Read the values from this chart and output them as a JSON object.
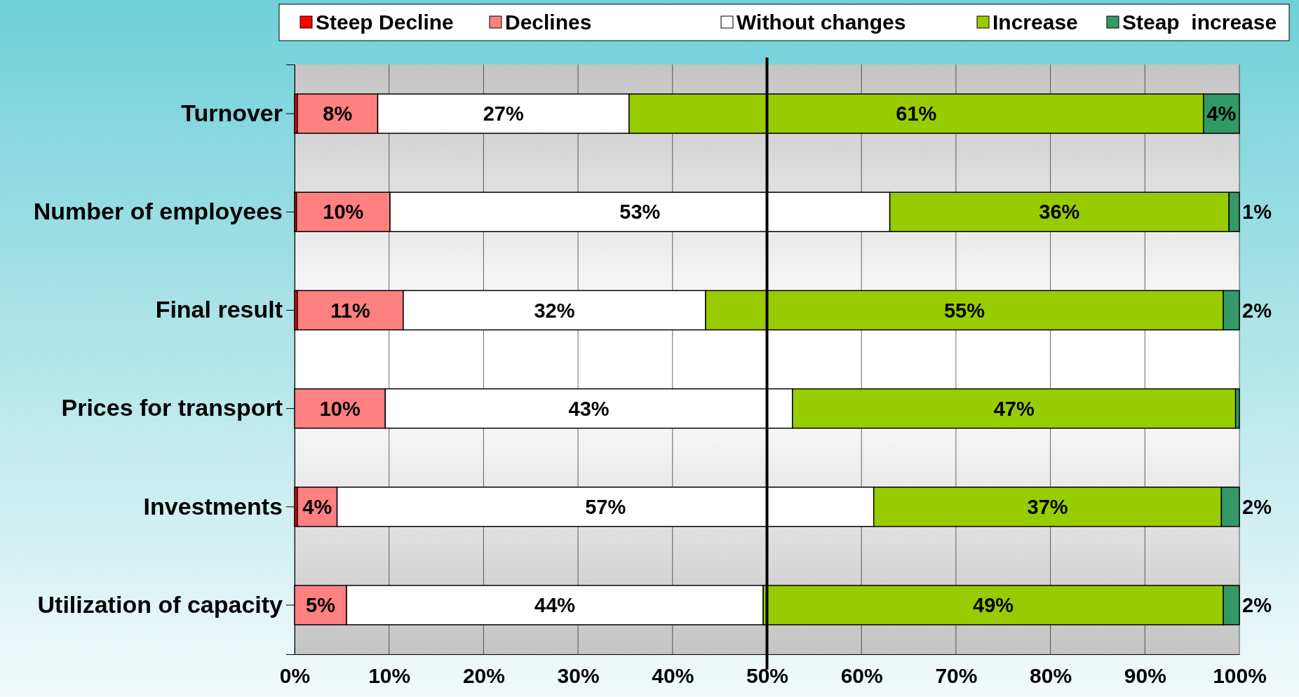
{
  "chart_data": {
    "type": "bar",
    "orientation": "horizontal",
    "stacked": true,
    "categories": [
      "Turnover",
      "Number of employees",
      "Final result",
      "Prices for transport",
      "Investments",
      "Utilization of capacity"
    ],
    "series": [
      {
        "name": "Steep Decline",
        "color": "#ff0000",
        "values": [
          0.3,
          0.2,
          0.3,
          0,
          0.3,
          0
        ]
      },
      {
        "name": "Declines",
        "color": "#ff8080",
        "values": [
          8.5,
          9.9,
          11.2,
          9.6,
          4.2,
          5.5
        ],
        "value_labels": [
          "8%",
          "10%",
          "11%",
          "10%",
          "4%",
          "5%"
        ]
      },
      {
        "name": "Without changes",
        "color": "#ffffff",
        "values": [
          26.6,
          52.9,
          32.0,
          43.1,
          56.8,
          44.1
        ],
        "value_labels": [
          "27%",
          "53%",
          "32%",
          "43%",
          "57%",
          "44%"
        ]
      },
      {
        "name": "Increase",
        "color": "#99cc00",
        "values": [
          60.8,
          35.9,
          54.8,
          46.9,
          36.8,
          48.7
        ],
        "value_labels": [
          "61%",
          "36%",
          "55%",
          "47%",
          "37%",
          "49%"
        ]
      },
      {
        "name": "Steap  increase",
        "color": "#339966",
        "values": [
          3.8,
          1.1,
          1.7,
          0.4,
          1.9,
          1.7
        ],
        "value_labels": [
          "4%",
          "1%",
          "2%",
          null,
          "2%",
          "2%"
        ]
      }
    ],
    "xlim": [
      0,
      100
    ],
    "xticks": [
      {
        "value": 0,
        "label": "0%"
      },
      {
        "value": 10,
        "label": "10%"
      },
      {
        "value": 20,
        "label": "20%"
      },
      {
        "value": 30,
        "label": "30%"
      },
      {
        "value": 40,
        "label": "40%"
      },
      {
        "value": 50,
        "label": "50%"
      },
      {
        "value": 60,
        "label": "60%"
      },
      {
        "value": 70,
        "label": "70%"
      },
      {
        "value": 80,
        "label": "80%"
      },
      {
        "value": 90,
        "label": "90%"
      },
      {
        "value": 100,
        "label": "100%"
      }
    ],
    "grid": "x",
    "legend": "top",
    "ref_lines": [
      {
        "axis": "x",
        "value": 50,
        "color": "#000000"
      }
    ]
  }
}
